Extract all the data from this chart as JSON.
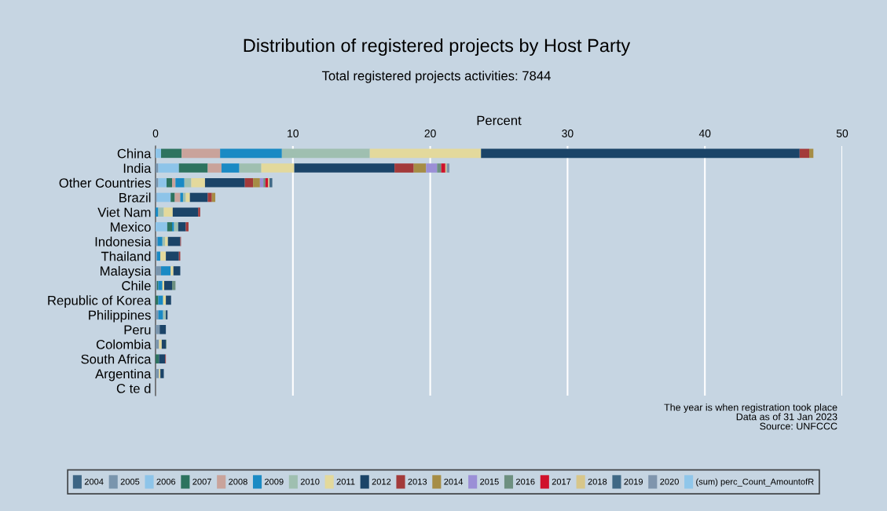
{
  "chart_data": {
    "type": "bar",
    "orientation": "horizontal",
    "stacked": true,
    "title": "Distribution of registered projects by Host Party",
    "subtitle": "Total registered projects activities: 7844",
    "xlabel": "Percent",
    "categories": [
      "China",
      "India",
      "Other Countries",
      "Brazil",
      "Viet Nam",
      "Mexico",
      "Indonesia",
      "Thailand",
      "Malaysia",
      "Chile",
      "Republic of Korea",
      "Philippines",
      "Peru",
      "Colombia",
      "South Africa",
      "Argentina",
      "C te d"
    ],
    "xlim": [
      0,
      50
    ],
    "xticks": [
      0,
      10,
      20,
      30,
      40,
      50
    ],
    "grid": "x",
    "legend": "bottom",
    "series": [
      {
        "name": "2004",
        "color": "#3d6584",
        "values": [
          0,
          0,
          0,
          0,
          0,
          0,
          0,
          0,
          0,
          0,
          0,
          0,
          0,
          0,
          0,
          0,
          0
        ]
      },
      {
        "name": "2005",
        "color": "#7a95ad",
        "values": [
          0,
          0.2,
          0.2,
          0.1,
          0,
          0,
          0.15,
          0.1,
          0.4,
          0.1,
          0,
          0.2,
          0.3,
          0.25,
          0,
          0.25,
          0
        ]
      },
      {
        "name": "2006",
        "color": "#8dc4e9",
        "values": [
          0.4,
          1.5,
          0.6,
          1.0,
          0,
          0.85,
          0,
          0,
          0,
          0,
          0,
          0,
          0,
          0,
          0,
          0,
          0
        ]
      },
      {
        "name": "2007",
        "color": "#2d735f",
        "values": [
          1.5,
          2.1,
          0.4,
          0.3,
          0,
          0.35,
          0,
          0,
          0,
          0.1,
          0.2,
          0,
          0,
          0,
          0.25,
          0,
          0
        ]
      },
      {
        "name": "2008",
        "color": "#c9a39b",
        "values": [
          2.8,
          1.0,
          0.25,
          0.4,
          0,
          0,
          0,
          0,
          0,
          0,
          0,
          0,
          0,
          0,
          0,
          0,
          0
        ]
      },
      {
        "name": "2009",
        "color": "#1a8ac4",
        "values": [
          4.5,
          1.3,
          0.65,
          0.2,
          0.2,
          0.15,
          0.35,
          0.25,
          0.7,
          0.3,
          0.35,
          0.35,
          0,
          0,
          0,
          0,
          0
        ]
      },
      {
        "name": "2010",
        "color": "#9fbfb0",
        "values": [
          6.4,
          1.6,
          0.5,
          0.2,
          0.4,
          0.3,
          0.2,
          0,
          0,
          0,
          0,
          0.2,
          0,
          0,
          0,
          0,
          0
        ]
      },
      {
        "name": "2011",
        "color": "#e3d99c",
        "values": [
          8.1,
          2.4,
          1.0,
          0.3,
          0.65,
          0,
          0.2,
          0.4,
          0.2,
          0.13,
          0.2,
          0,
          0,
          0.2,
          0,
          0.1,
          0
        ]
      },
      {
        "name": "2012",
        "color": "#1b4468",
        "values": [
          23.2,
          7.3,
          2.9,
          1.3,
          1.85,
          0.55,
          0.9,
          0.95,
          0.5,
          0.57,
          0.38,
          0.12,
          0.45,
          0.3,
          0.45,
          0.25,
          0
        ]
      },
      {
        "name": "2013",
        "color": "#a33a3a",
        "values": [
          0.7,
          1.4,
          0.6,
          0.3,
          0.15,
          0.2,
          0.05,
          0.1,
          0,
          0,
          0,
          0,
          0,
          0,
          0.05,
          0,
          0
        ]
      },
      {
        "name": "2014",
        "color": "#a68d45",
        "values": [
          0.3,
          0.9,
          0.5,
          0.25,
          0,
          0,
          0,
          0,
          0,
          0,
          0,
          0,
          0,
          0,
          0,
          0,
          0
        ]
      },
      {
        "name": "2015",
        "color": "#9b8fd6",
        "values": [
          0,
          0.8,
          0.25,
          0,
          0,
          0,
          0,
          0,
          0,
          0,
          0,
          0,
          0,
          0,
          0,
          0,
          0
        ]
      },
      {
        "name": "2016",
        "color": "#6d9080",
        "values": [
          0,
          0.3,
          0.15,
          0,
          0,
          0,
          0,
          0,
          0,
          0.25,
          0,
          0,
          0,
          0.05,
          0,
          0,
          0
        ]
      },
      {
        "name": "2017",
        "color": "#d0112b",
        "values": [
          0,
          0.3,
          0.2,
          0,
          0,
          0,
          0,
          0,
          0,
          0,
          0,
          0,
          0,
          0,
          0,
          0,
          0
        ]
      },
      {
        "name": "2018",
        "color": "#d7c68a",
        "values": [
          0,
          0.1,
          0.1,
          0,
          0,
          0,
          0,
          0,
          0,
          0,
          0,
          0,
          0,
          0,
          0,
          0,
          0
        ]
      },
      {
        "name": "2019",
        "color": "#3f6885",
        "values": [
          0,
          0,
          0.2,
          0,
          0,
          0,
          0,
          0,
          0,
          0,
          0,
          0,
          0,
          0,
          0,
          0,
          0
        ]
      },
      {
        "name": "2020",
        "color": "#7f95ad",
        "values": [
          0,
          0.2,
          0,
          0,
          0,
          0,
          0,
          0,
          0,
          0,
          0,
          0,
          0,
          0,
          0,
          0,
          0
        ]
      },
      {
        "name": "(sum) perc_Count_AmountofR",
        "color": "#8fc6ea",
        "values": [
          0,
          0,
          0,
          0,
          0,
          0,
          0,
          0,
          0,
          0,
          0,
          0,
          0,
          0,
          0,
          0,
          0
        ]
      }
    ],
    "annotations": [
      "The year is when registration took place",
      "Data as of 31 Jan 2023",
      "Source: UNFCCC"
    ]
  }
}
